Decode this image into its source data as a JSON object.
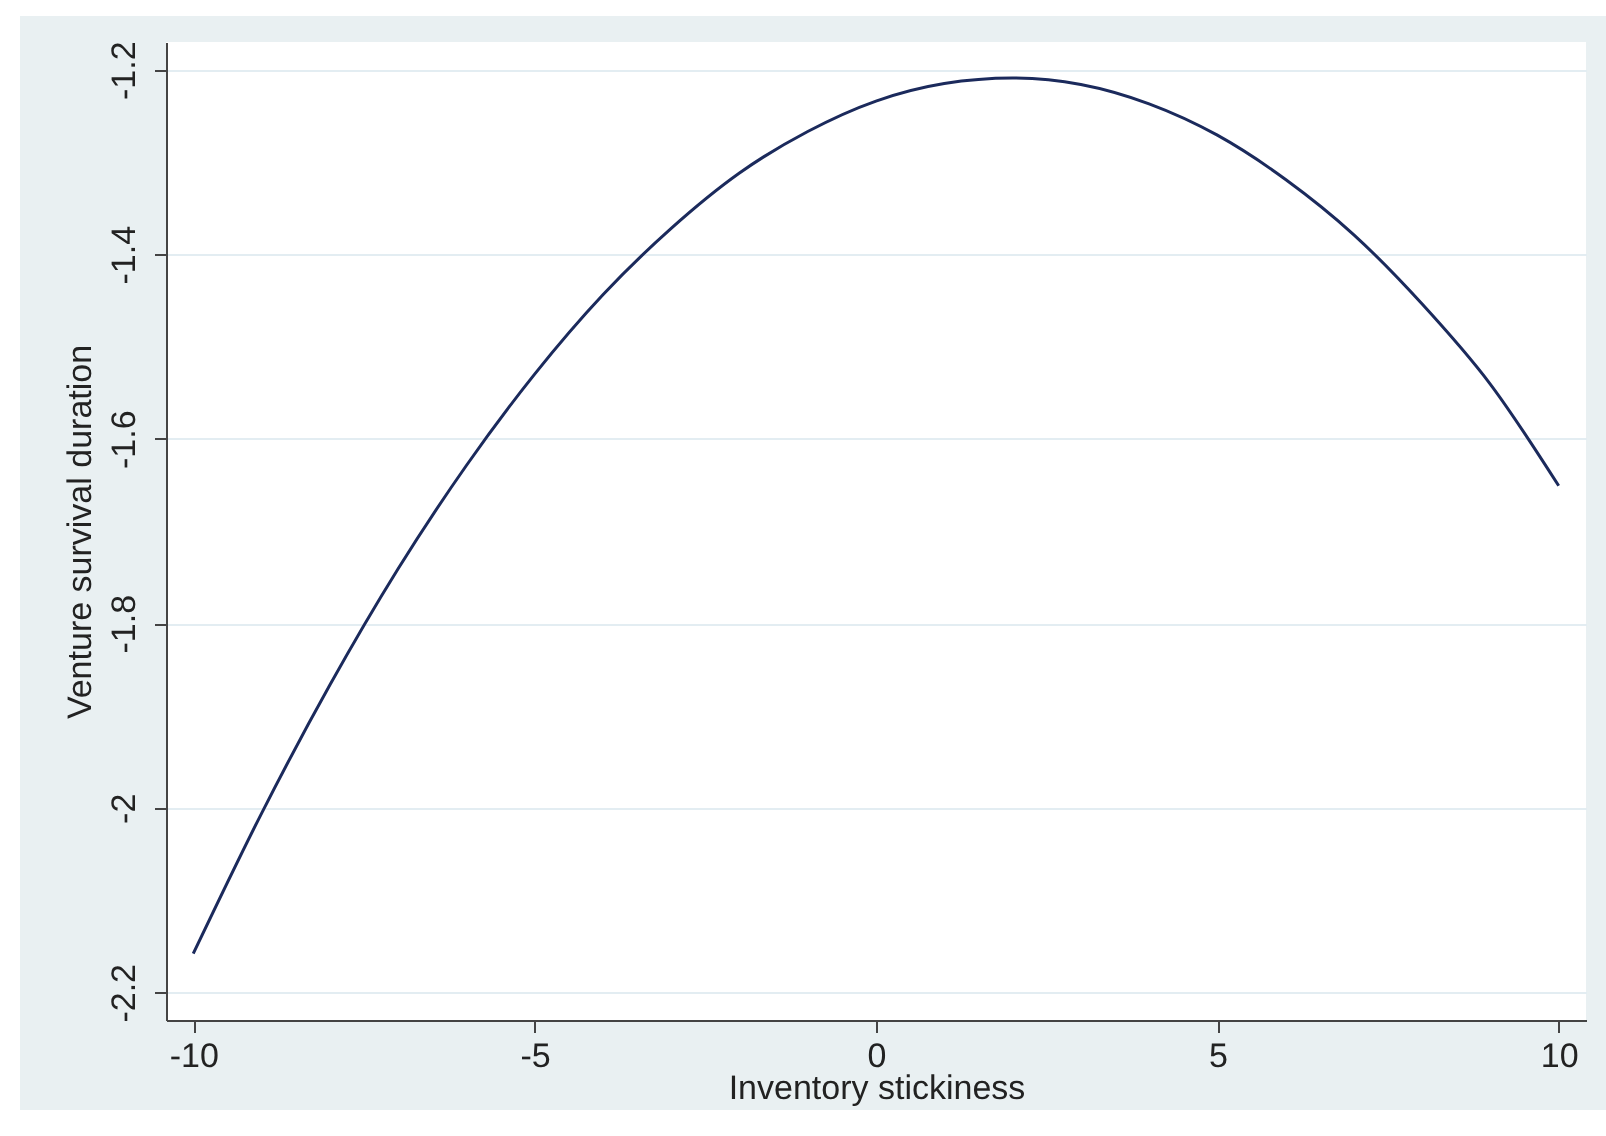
{
  "chart_data": {
    "type": "line",
    "xlabel": "Inventory stickiness",
    "ylabel": "Venture survival duration",
    "x": [
      -10,
      -9,
      -8,
      -7,
      -6,
      -5,
      -4,
      -3,
      -2,
      -1,
      0,
      1,
      2,
      3,
      4,
      5,
      6,
      7,
      8,
      9,
      10
    ],
    "series": [
      {
        "color": "#1b2a5c",
        "values": [
          -2.158,
          -2.006,
          -1.867,
          -1.741,
          -1.629,
          -1.53,
          -1.444,
          -1.372,
          -1.312,
          -1.267,
          -1.234,
          -1.215,
          -1.209,
          -1.216,
          -1.237,
          -1.271,
          -1.319,
          -1.379,
          -1.454,
          -1.541,
          -1.651
        ]
      }
    ],
    "xlim": [
      -10.4,
      10.4
    ],
    "ylim": [
      -2.23,
      -1.17
    ],
    "xticks": [
      -10,
      -5,
      0,
      5,
      10
    ],
    "yticks": [
      -2.2,
      -2,
      -1.8,
      -1.6,
      -1.4,
      -1.2
    ],
    "grid": "y",
    "marker": "none",
    "line_style": "solid"
  }
}
